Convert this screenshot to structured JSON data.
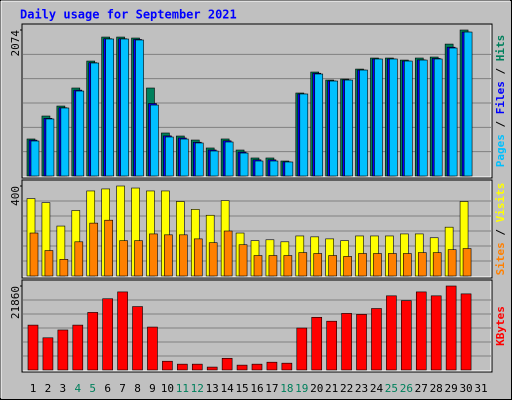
{
  "chart_data": [
    {
      "type": "bar",
      "title": "Daily usage for September 2021",
      "ylim": [
        0,
        2074
      ],
      "yticks": [
        2074
      ],
      "legend_separator": " / ",
      "series": [
        {
          "name": "Hits",
          "color": "#00805c",
          "values": [
            526,
            852,
            994,
            1250,
            1633,
            1974,
            1974,
            1960,
            1250,
            611,
            568,
            511,
            398,
            526,
            369,
            256,
            256,
            213,
            1179,
            1477,
            1363,
            1377,
            1519,
            1676,
            1676,
            1647,
            1676,
            1690,
            1874,
            2074,
            null
          ]
        },
        {
          "name": "Files",
          "color": "#0000ff",
          "values": [
            510,
            820,
            970,
            1220,
            1610,
            1950,
            1950,
            1940,
            1030,
            570,
            540,
            480,
            370,
            500,
            340,
            230,
            230,
            200,
            1165,
            1460,
            1350,
            1365,
            1505,
            1662,
            1662,
            1633,
            1650,
            1670,
            1830,
            2045,
            null
          ]
        },
        {
          "name": "Pages",
          "color": "#00c0ff",
          "values": [
            497,
            810,
            966,
            1207,
            1605,
            1946,
            1946,
            1932,
            1008,
            554,
            525,
            469,
            355,
            483,
            326,
            213,
            213,
            199,
            1165,
            1449,
            1349,
            1363,
            1505,
            1662,
            1662,
            1633,
            1647,
            1662,
            1818,
            2045,
            null
          ]
        }
      ]
    },
    {
      "type": "bar",
      "ylim": [
        0,
        400
      ],
      "yticks": [
        400
      ],
      "legend_separator": " / ",
      "series": [
        {
          "name": "Visits",
          "color": "#ffff00",
          "values": [
            344,
            326,
            222,
            291,
            378,
            387,
            400,
            391,
            378,
            378,
            331,
            296,
            270,
            335,
            191,
            157,
            161,
            152,
            178,
            174,
            165,
            157,
            178,
            178,
            178,
            187,
            187,
            170,
            217,
            331,
            null
          ]
        },
        {
          "name": "Sites",
          "color": "#ff8000",
          "values": [
            191,
            113,
            74,
            152,
            235,
            248,
            157,
            157,
            187,
            183,
            183,
            165,
            148,
            200,
            139,
            91,
            91,
            91,
            104,
            100,
            91,
            87,
            100,
            100,
            100,
            100,
            104,
            104,
            117,
            122,
            null
          ]
        }
      ]
    },
    {
      "type": "bar",
      "ylim": [
        0,
        21860
      ],
      "yticks": [
        21860
      ],
      "categories": [
        "1",
        "2",
        "3",
        "4",
        "5",
        "6",
        "7",
        "8",
        "9",
        "10",
        "11",
        "12",
        "13",
        "14",
        "15",
        "16",
        "17",
        "18",
        "19",
        "20",
        "21",
        "22",
        "23",
        "24",
        "25",
        "26",
        "27",
        "28",
        "29",
        "30",
        "31"
      ],
      "category_colors": [
        "#000",
        "#000",
        "#000",
        "#00805c",
        "#00805c",
        "#000",
        "#000",
        "#000",
        "#000",
        "#000",
        "#00805c",
        "#00805c",
        "#000",
        "#000",
        "#000",
        "#000",
        "#000",
        "#00805c",
        "#00805c",
        "#000",
        "#000",
        "#000",
        "#000",
        "#000",
        "#00805c",
        "#00805c",
        "#000",
        "#000",
        "#000",
        "#000",
        "#000"
      ],
      "series": [
        {
          "name": "KBytes",
          "color": "#ff0000",
          "values": [
            11684,
            8382,
            10414,
            11684,
            14986,
            18542,
            20320,
            16510,
            11176,
            2286,
            1524,
            1524,
            762,
            3048,
            1270,
            1524,
            2032,
            1778,
            10922,
            13716,
            12700,
            14732,
            14478,
            16002,
            19304,
            18034,
            20320,
            19304,
            21860,
            19812,
            null
          ]
        }
      ]
    }
  ]
}
